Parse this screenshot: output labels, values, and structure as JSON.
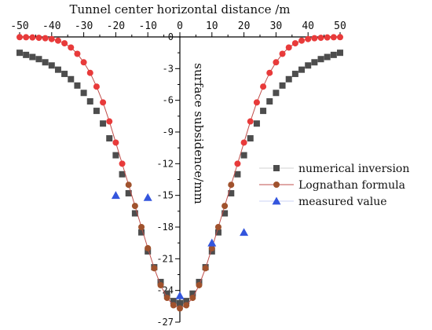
{
  "chart_data": {
    "type": "scatter",
    "xlabel": "Tunnel center horizontal distance /m",
    "ylabel": "surface subsidence/mm",
    "xlim": [
      -50,
      50
    ],
    "ylim": [
      -27,
      0
    ],
    "x_ticks": [
      "-50",
      "-40",
      "-30",
      "-20",
      "-10",
      "0",
      "10",
      "20",
      "30",
      "40",
      "50"
    ],
    "y_ticks": [
      "0",
      "-3",
      "-6",
      "-9",
      "-12",
      "-15",
      "-18",
      "-21",
      "-24",
      "-27"
    ],
    "x_axis_position": "top",
    "y_axis_position": "center",
    "grid": false,
    "legend_position": "right",
    "series": [
      {
        "name": "numerical inversion",
        "marker": "square",
        "color": "#4d4d4d",
        "line": false,
        "x": [
          -50,
          -48,
          -46,
          -44,
          -42,
          -40,
          -38,
          -36,
          -34,
          -32,
          -30,
          -28,
          -26,
          -24,
          -22,
          -20,
          -18,
          -16,
          -14,
          -12,
          -10,
          -8,
          -6,
          -4,
          -2,
          0,
          2,
          4,
          6,
          8,
          10,
          12,
          14,
          16,
          18,
          20,
          22,
          24,
          26,
          28,
          30,
          32,
          34,
          36,
          38,
          40,
          42,
          44,
          46,
          48,
          50
        ],
        "y": [
          -1.5,
          -1.7,
          -1.9,
          -2.1,
          -2.4,
          -2.7,
          -3.1,
          -3.5,
          -4.0,
          -4.6,
          -5.3,
          -6.1,
          -7.0,
          -8.2,
          -9.6,
          -11.2,
          -13.0,
          -14.8,
          -16.7,
          -18.5,
          -20.3,
          -21.8,
          -23.2,
          -24.3,
          -25.0,
          -25.2,
          -25.0,
          -24.3,
          -23.2,
          -21.8,
          -20.3,
          -18.5,
          -16.7,
          -14.8,
          -13.0,
          -11.2,
          -9.6,
          -8.2,
          -7.0,
          -6.1,
          -5.3,
          -4.6,
          -4.0,
          -3.5,
          -3.1,
          -2.7,
          -2.4,
          -2.1,
          -1.9,
          -1.7,
          -1.5
        ]
      },
      {
        "name": "Lognathan formula",
        "marker": "circle",
        "color": "#e83a3a",
        "edge_color": "#a0522d",
        "line": true,
        "line_color": "#c0504d",
        "x": [
          -50,
          -48,
          -46,
          -44,
          -42,
          -40,
          -38,
          -36,
          -34,
          -32,
          -30,
          -28,
          -26,
          -24,
          -22,
          -20,
          -18,
          -16,
          -14,
          -12,
          -10,
          -8,
          -6,
          -4,
          -2,
          0,
          2,
          4,
          6,
          8,
          10,
          12,
          14,
          16,
          18,
          20,
          22,
          24,
          26,
          28,
          30,
          32,
          34,
          36,
          38,
          40,
          42,
          44,
          46,
          48,
          50
        ],
        "y": [
          -0.02,
          -0.03,
          -0.05,
          -0.08,
          -0.12,
          -0.2,
          -0.35,
          -0.6,
          -1.0,
          -1.6,
          -2.4,
          -3.4,
          -4.7,
          -6.2,
          -8.0,
          -10.0,
          -12.0,
          -14.0,
          -16.0,
          -18.0,
          -20.0,
          -21.9,
          -23.5,
          -24.7,
          -25.4,
          -25.7,
          -25.4,
          -24.7,
          -23.5,
          -21.9,
          -20.0,
          -18.0,
          -16.0,
          -14.0,
          -12.0,
          -10.0,
          -8.0,
          -6.2,
          -4.7,
          -3.4,
          -2.4,
          -1.6,
          -1.0,
          -0.6,
          -0.35,
          -0.2,
          -0.12,
          -0.08,
          -0.05,
          -0.03,
          -0.02
        ]
      },
      {
        "name": "measured value",
        "marker": "triangle",
        "color": "#3355dd",
        "line": false,
        "x": [
          -20,
          -10,
          0,
          10,
          20
        ],
        "y": [
          -15.0,
          -15.2,
          -24.5,
          -19.5,
          -18.5
        ]
      }
    ]
  }
}
